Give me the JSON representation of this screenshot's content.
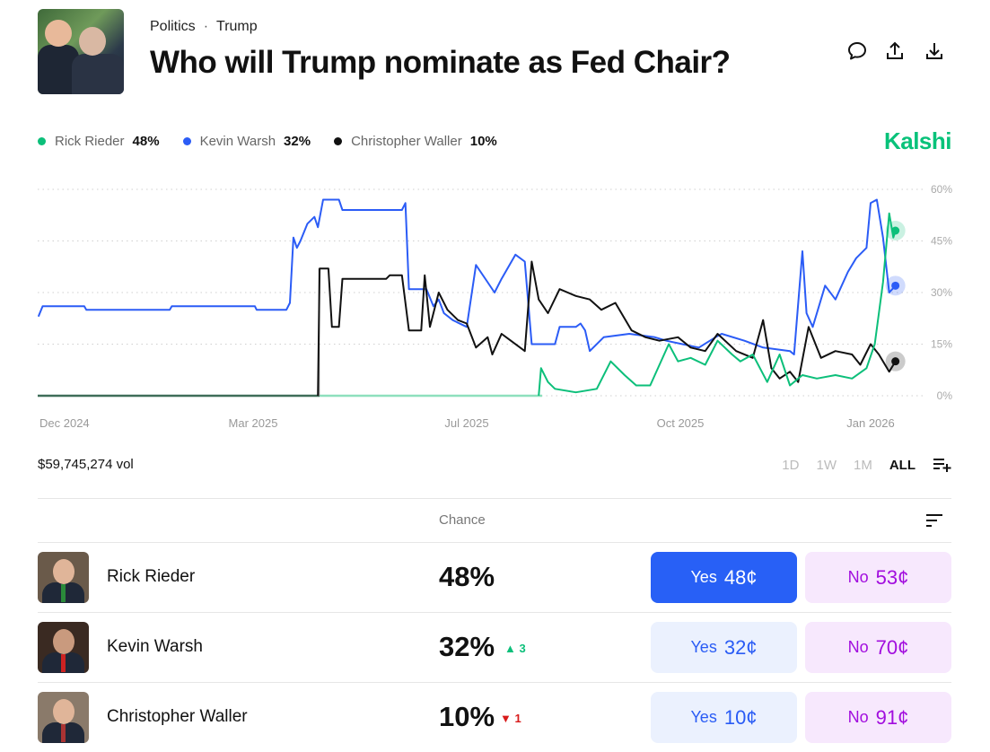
{
  "header": {
    "breadcrumb": [
      "Politics",
      "Trump"
    ],
    "breadcrumb_sep": "·",
    "title": "Who will Trump nominate as Fed Chair?",
    "icons": [
      "comment-icon",
      "share-icon",
      "download-icon"
    ]
  },
  "brand": {
    "name": "Kalshi",
    "color": "#09c27a"
  },
  "legend": [
    {
      "name": "Rick Rieder",
      "pct": "48%",
      "color": "#0cbf7a"
    },
    {
      "name": "Kevin Warsh",
      "pct": "32%",
      "color": "#2b5cf6"
    },
    {
      "name": "Christopher Waller",
      "pct": "10%",
      "color": "#111111"
    }
  ],
  "chart_data": {
    "type": "line",
    "ylim": [
      0,
      60
    ],
    "y_ticks": [
      "0%",
      "15%",
      "30%",
      "45%",
      "60%"
    ],
    "y_tick_values": [
      0,
      15,
      30,
      45,
      60
    ],
    "x_ticks": [
      "Dec 2024",
      "Mar 2025",
      "Jul 2025",
      "Oct 2025",
      "Jan 2026"
    ],
    "x_tick_dates": [
      "2024-12-01",
      "2025-03-01",
      "2025-07-01",
      "2025-10-01",
      "2026-01-01"
    ],
    "grid": "horizontal dotted",
    "series": [
      {
        "name": "Kevin Warsh",
        "color": "#2b5cf6",
        "points": [
          [
            "2024-11-18",
            23
          ],
          [
            "2024-11-20",
            26
          ],
          [
            "2024-12-10",
            26
          ],
          [
            "2024-12-11",
            25
          ],
          [
            "2025-01-20",
            25
          ],
          [
            "2025-01-21",
            26
          ],
          [
            "2025-03-02",
            26
          ],
          [
            "2025-03-03",
            25
          ],
          [
            "2025-03-20",
            25
          ],
          [
            "2025-03-22",
            27
          ],
          [
            "2025-03-24",
            46
          ],
          [
            "2025-03-26",
            43
          ],
          [
            "2025-03-28",
            45
          ],
          [
            "2025-04-01",
            50
          ],
          [
            "2025-04-05",
            52
          ],
          [
            "2025-04-07",
            49
          ],
          [
            "2025-04-10",
            57
          ],
          [
            "2025-04-19",
            57
          ],
          [
            "2025-04-21",
            54
          ],
          [
            "2025-05-25",
            54
          ],
          [
            "2025-05-27",
            56
          ],
          [
            "2025-05-29",
            31
          ],
          [
            "2025-06-08",
            31
          ],
          [
            "2025-06-12",
            26
          ],
          [
            "2025-06-15",
            28
          ],
          [
            "2025-06-18",
            24
          ],
          [
            "2025-06-23",
            22
          ],
          [
            "2025-07-01",
            20
          ],
          [
            "2025-07-05",
            38
          ],
          [
            "2025-07-10",
            33
          ],
          [
            "2025-07-13",
            30
          ],
          [
            "2025-07-16",
            34
          ],
          [
            "2025-07-22",
            41
          ],
          [
            "2025-07-26",
            39
          ],
          [
            "2025-07-29",
            15
          ],
          [
            "2025-08-08",
            15
          ],
          [
            "2025-08-10",
            20
          ],
          [
            "2025-08-17",
            20
          ],
          [
            "2025-08-19",
            21
          ],
          [
            "2025-08-21",
            19
          ],
          [
            "2025-08-23",
            13
          ],
          [
            "2025-08-29",
            17
          ],
          [
            "2025-09-09",
            18
          ],
          [
            "2025-09-20",
            17
          ],
          [
            "2025-09-25",
            16
          ],
          [
            "2025-10-02",
            15
          ],
          [
            "2025-10-10",
            14
          ],
          [
            "2025-10-18",
            17
          ],
          [
            "2025-10-21",
            18
          ],
          [
            "2025-11-01",
            16
          ],
          [
            "2025-11-10",
            14
          ],
          [
            "2025-11-23",
            13
          ],
          [
            "2025-11-25",
            12
          ],
          [
            "2025-11-29",
            42
          ],
          [
            "2025-12-01",
            24
          ],
          [
            "2025-12-04",
            20
          ],
          [
            "2025-12-06",
            24
          ],
          [
            "2025-12-10",
            32
          ],
          [
            "2025-12-15",
            28
          ],
          [
            "2025-12-21",
            36
          ],
          [
            "2025-12-25",
            40
          ],
          [
            "2025-12-30",
            43
          ],
          [
            "2026-01-01",
            56
          ],
          [
            "2026-01-04",
            57
          ],
          [
            "2026-01-07",
            46
          ],
          [
            "2026-01-10",
            30
          ],
          [
            "2026-01-13",
            32
          ]
        ]
      },
      {
        "name": "Christopher Waller",
        "color": "#111111",
        "points": [
          [
            "2024-11-18",
            0
          ],
          [
            "2025-04-07",
            0
          ],
          [
            "2025-04-08",
            37
          ],
          [
            "2025-04-13",
            37
          ],
          [
            "2025-04-15",
            20
          ],
          [
            "2025-04-19",
            20
          ],
          [
            "2025-04-21",
            34
          ],
          [
            "2025-05-16",
            34
          ],
          [
            "2025-05-18",
            35
          ],
          [
            "2025-05-25",
            35
          ],
          [
            "2025-05-29",
            19
          ],
          [
            "2025-06-05",
            19
          ],
          [
            "2025-06-07",
            35
          ],
          [
            "2025-06-10",
            20
          ],
          [
            "2025-06-15",
            30
          ],
          [
            "2025-06-20",
            25
          ],
          [
            "2025-06-26",
            22
          ],
          [
            "2025-07-01",
            21
          ],
          [
            "2025-07-05",
            14
          ],
          [
            "2025-07-10",
            17
          ],
          [
            "2025-07-12",
            12
          ],
          [
            "2025-07-16",
            18
          ],
          [
            "2025-07-20",
            16
          ],
          [
            "2025-07-26",
            13
          ],
          [
            "2025-07-29",
            39
          ],
          [
            "2025-08-01",
            28
          ],
          [
            "2025-08-05",
            24
          ],
          [
            "2025-08-10",
            31
          ],
          [
            "2025-08-17",
            29
          ],
          [
            "2025-08-23",
            28
          ],
          [
            "2025-08-28",
            25
          ],
          [
            "2025-09-03",
            27
          ],
          [
            "2025-09-10",
            19
          ],
          [
            "2025-09-16",
            17
          ],
          [
            "2025-09-22",
            16
          ],
          [
            "2025-09-30",
            17
          ],
          [
            "2025-10-06",
            14
          ],
          [
            "2025-10-13",
            13
          ],
          [
            "2025-10-19",
            18
          ],
          [
            "2025-10-28",
            13
          ],
          [
            "2025-11-05",
            11
          ],
          [
            "2025-11-10",
            22
          ],
          [
            "2025-11-14",
            8
          ],
          [
            "2025-11-18",
            5
          ],
          [
            "2025-11-23",
            7
          ],
          [
            "2025-11-27",
            4
          ],
          [
            "2025-12-02",
            20
          ],
          [
            "2025-12-08",
            11
          ],
          [
            "2025-12-15",
            13
          ],
          [
            "2025-12-23",
            12
          ],
          [
            "2025-12-27",
            9
          ],
          [
            "2026-01-01",
            15
          ],
          [
            "2026-01-05",
            12
          ],
          [
            "2026-01-10",
            7
          ],
          [
            "2026-01-13",
            10
          ]
        ]
      },
      {
        "name": "Rick Rieder",
        "color": "#0cbf7a",
        "points": [
          [
            "2024-11-18",
            0
          ],
          [
            "2025-08-01",
            0
          ],
          [
            "2025-08-02",
            8
          ],
          [
            "2025-08-05",
            4
          ],
          [
            "2025-08-08",
            2
          ],
          [
            "2025-08-17",
            1
          ],
          [
            "2025-08-26",
            2
          ],
          [
            "2025-09-01",
            10
          ],
          [
            "2025-09-07",
            6
          ],
          [
            "2025-09-12",
            3
          ],
          [
            "2025-09-18",
            3
          ],
          [
            "2025-09-26",
            15
          ],
          [
            "2025-09-30",
            10
          ],
          [
            "2025-10-06",
            11
          ],
          [
            "2025-10-13",
            9
          ],
          [
            "2025-10-19",
            16
          ],
          [
            "2025-10-26",
            12
          ],
          [
            "2025-10-30",
            10
          ],
          [
            "2025-11-05",
            12
          ],
          [
            "2025-11-12",
            4
          ],
          [
            "2025-11-18",
            12
          ],
          [
            "2025-11-23",
            3
          ],
          [
            "2025-11-29",
            6
          ],
          [
            "2025-12-06",
            5
          ],
          [
            "2025-12-15",
            6
          ],
          [
            "2025-12-23",
            5
          ],
          [
            "2025-12-30",
            8
          ],
          [
            "2026-01-03",
            15
          ],
          [
            "2026-01-07",
            33
          ],
          [
            "2026-01-10",
            53
          ],
          [
            "2026-01-12",
            46
          ],
          [
            "2026-01-13",
            48
          ]
        ]
      }
    ]
  },
  "volume": "$59,745,274 vol",
  "ranges": [
    {
      "label": "1D",
      "active": false
    },
    {
      "label": "1W",
      "active": false
    },
    {
      "label": "1M",
      "active": false
    },
    {
      "label": "ALL",
      "active": true
    }
  ],
  "table": {
    "chance_header": "Chance",
    "rows": [
      {
        "name": "Rick Rieder",
        "chance": "48%",
        "change": "",
        "change_dir": "",
        "yes_label": "Yes",
        "yes_price": "48¢",
        "no_label": "No",
        "no_price": "53¢"
      },
      {
        "name": "Kevin Warsh",
        "chance": "32%",
        "change": "3",
        "change_dir": "up",
        "yes_label": "Yes",
        "yes_price": "32¢",
        "no_label": "No",
        "no_price": "70¢"
      },
      {
        "name": "Christopher Waller",
        "chance": "10%",
        "change": "1",
        "change_dir": "down",
        "yes_label": "Yes",
        "yes_price": "10¢",
        "no_label": "No",
        "no_price": "91¢"
      }
    ]
  }
}
